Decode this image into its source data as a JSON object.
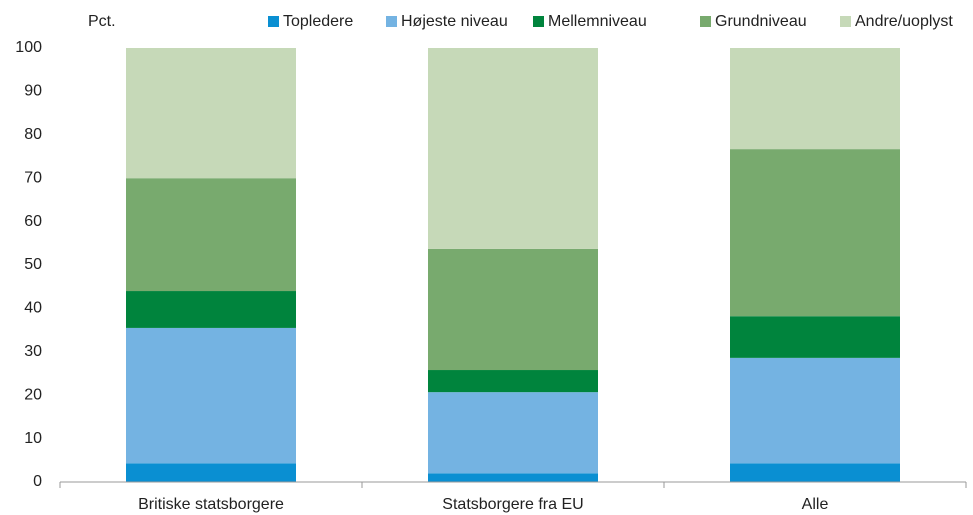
{
  "chart_data": {
    "type": "stacked_bar",
    "ylabel": "Pct.",
    "categories": [
      "Britiske statsborgere",
      "Statsborgere fra EU",
      "Alle"
    ],
    "series": [
      {
        "name": "Topledere",
        "color": "#0a8fd2",
        "values": [
          4.3,
          2.0,
          4.3
        ]
      },
      {
        "name": "Højeste niveau",
        "color": "#74b3e2",
        "values": [
          31.2,
          18.7,
          24.3
        ]
      },
      {
        "name": "Mellemniveau",
        "color": "#00843d",
        "values": [
          8.5,
          5.1,
          9.6
        ]
      },
      {
        "name": "Grundniveau",
        "color": "#78aa6e",
        "values": [
          26.0,
          27.9,
          38.5
        ]
      },
      {
        "name": "Andre/uoplyst",
        "color": "#c6d9b8",
        "values": [
          30.0,
          46.3,
          23.3
        ]
      }
    ],
    "ylim": [
      0,
      100
    ],
    "yticks": [
      0,
      10,
      20,
      30,
      40,
      50,
      60,
      70,
      80,
      90,
      100
    ],
    "grid": false
  }
}
